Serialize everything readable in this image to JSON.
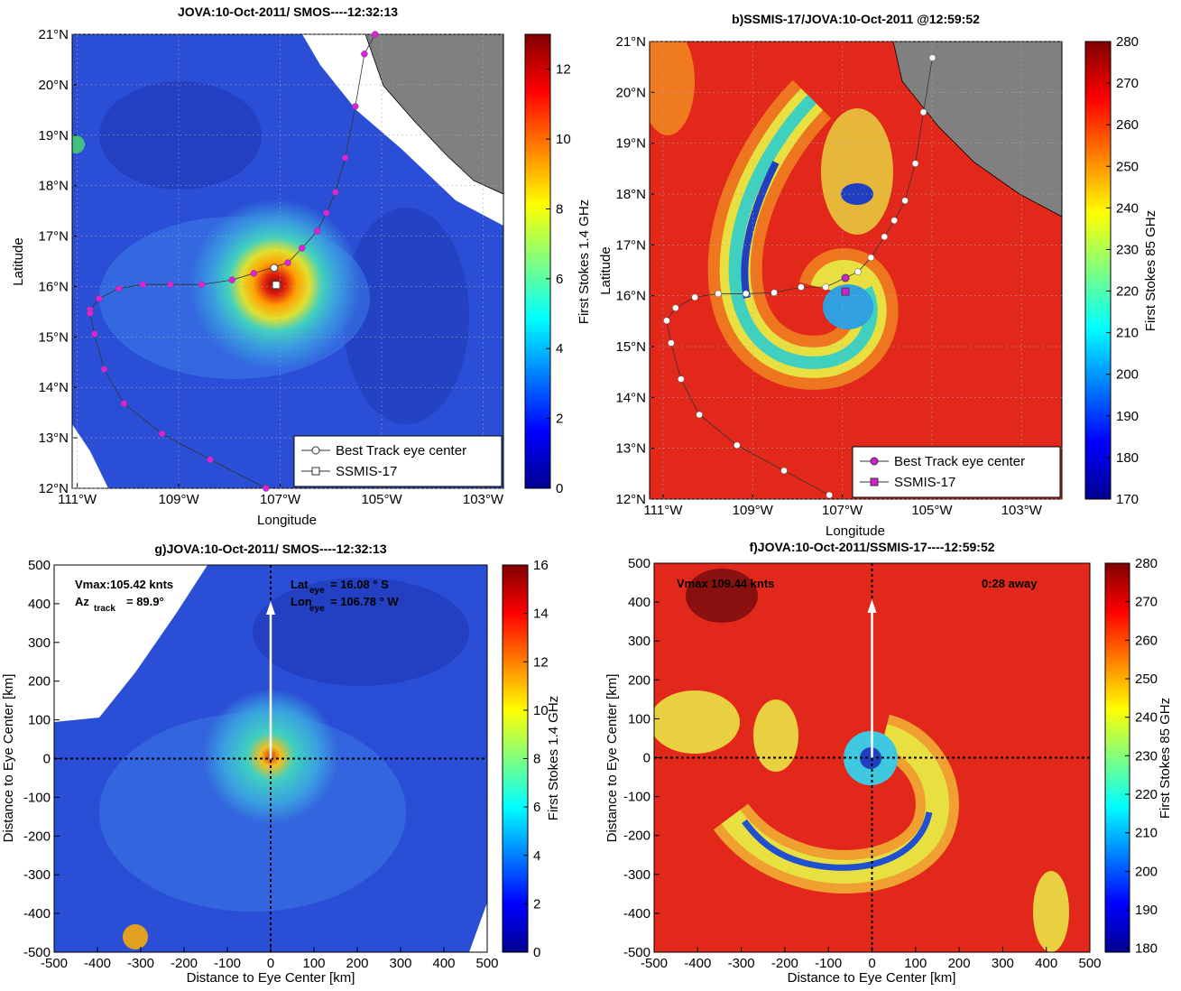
{
  "chart_data": [
    {
      "type": "contour-map",
      "title": "JOVA:10-Oct-2011/ SMOS----12:32:13",
      "xlabel": "Longitude",
      "ylabel": "Latitude",
      "colorbar_label": "First Stokes 1.4 GHz",
      "xlim": [
        -111.1,
        -102.6
      ],
      "ylim": [
        12,
        21
      ],
      "xticks": [
        {
          "value": -111,
          "label": "111°W"
        },
        {
          "value": -109,
          "label": "109°W"
        },
        {
          "value": -107,
          "label": "107°W"
        },
        {
          "value": -105,
          "label": "105°W"
        },
        {
          "value": -103,
          "label": "103°W"
        }
      ],
      "yticks": [
        {
          "value": 12,
          "label": "12°N"
        },
        {
          "value": 13,
          "label": "13°N"
        },
        {
          "value": 14,
          "label": "14°N"
        },
        {
          "value": 15,
          "label": "15°N"
        },
        {
          "value": 16,
          "label": "16°N"
        },
        {
          "value": 17,
          "label": "17°N"
        },
        {
          "value": 18,
          "label": "18°N"
        },
        {
          "value": 19,
          "label": "19°N"
        },
        {
          "value": 20,
          "label": "20°N"
        },
        {
          "value": 21,
          "label": "21°N"
        }
      ],
      "clim": [
        0,
        13
      ],
      "cticks": [
        0,
        2,
        4,
        6,
        8,
        10,
        12
      ],
      "grid": true,
      "legend": [
        "Best Track eye center",
        "SSMIS-17"
      ],
      "track": {
        "color": "#e020e0",
        "lon": [
          -105.13,
          -105.34,
          -105.52,
          -105.72,
          -105.91,
          -106.09,
          -106.27,
          -106.57,
          -106.85,
          -107.52,
          -107.95,
          -108.55,
          -109.16,
          -109.71,
          -110.18,
          -110.57,
          -110.75,
          -110.75,
          -110.66,
          -110.47,
          -110.08,
          -109.33,
          -108.38,
          -107.28
        ],
        "lat": [
          21.0,
          20.61,
          19.57,
          18.55,
          17.87,
          17.46,
          17.1,
          16.76,
          16.47,
          16.26,
          16.13,
          16.04,
          16.04,
          16.04,
          15.96,
          15.76,
          15.54,
          15.47,
          15.06,
          14.36,
          13.68,
          13.08,
          12.57,
          12.0
        ]
      },
      "eye_best": {
        "color": "#ffffff",
        "lon": -107.12,
        "lat": 16.37
      },
      "eye_ssmis": {
        "color": "#ffffff",
        "lon": -107.08,
        "lat": 16.03
      }
    },
    {
      "type": "contour-map",
      "title": "b)SSMIS-17/JOVA:10-Oct-2011 @12:59:52",
      "xlabel": "Longitude",
      "ylabel": "Latitude",
      "colorbar_label": "First Stokes 85 GHz",
      "xlim": [
        -111.3,
        -102.1
      ],
      "ylim": [
        12,
        21
      ],
      "xticks": [
        {
          "value": -111,
          "label": "111°W"
        },
        {
          "value": -109,
          "label": "109°W"
        },
        {
          "value": -107,
          "label": "107°W"
        },
        {
          "value": -105,
          "label": "105°W"
        },
        {
          "value": -103,
          "label": "103°W"
        }
      ],
      "yticks": [
        {
          "value": 12,
          "label": "12°N"
        },
        {
          "value": 13,
          "label": "13°N"
        },
        {
          "value": 14,
          "label": "14°N"
        },
        {
          "value": 15,
          "label": "15°N"
        },
        {
          "value": 16,
          "label": "16°N"
        },
        {
          "value": 17,
          "label": "17°N"
        },
        {
          "value": 18,
          "label": "18°N"
        },
        {
          "value": 19,
          "label": "19°N"
        },
        {
          "value": 20,
          "label": "20°N"
        },
        {
          "value": 21,
          "label": "21°N"
        }
      ],
      "clim": [
        170,
        280
      ],
      "cticks": [
        170,
        180,
        190,
        200,
        210,
        220,
        230,
        240,
        250,
        260,
        270,
        280
      ],
      "grid": true,
      "legend": [
        "Best Track eye center",
        "SSMIS-17"
      ],
      "track": {
        "color": "#ffffff",
        "lon": [
          -104.99,
          -105.19,
          -105.37,
          -105.6,
          -105.84,
          -106.06,
          -106.36,
          -106.65,
          -107.37,
          -107.92,
          -108.52,
          -109.15,
          -109.77,
          -110.29,
          -110.72,
          -110.92,
          -110.82,
          -110.6,
          -110.19,
          -109.35,
          -108.3,
          -107.29
        ],
        "lat": [
          20.68,
          19.61,
          18.6,
          17.87,
          17.48,
          17.16,
          16.75,
          16.47,
          16.17,
          16.17,
          16.06,
          16.04,
          16.04,
          15.97,
          15.76,
          15.51,
          15.07,
          14.36,
          13.66,
          13.06,
          12.56,
          12.08
        ]
      },
      "eye_best": {
        "color": "#d020d0",
        "lon": -106.93,
        "lat": 16.35
      },
      "eye_ssmis": {
        "color": "#d020d0",
        "lon": -106.93,
        "lat": 16.08
      }
    },
    {
      "type": "contour-polar",
      "title": "g)JOVA:10-Oct-2011/ SMOS----12:32:13",
      "xlabel": "Distance to Eye Center [km]",
      "ylabel": "Distance to Eye Center [km]",
      "colorbar_label": "First Stokes 1.4 GHz",
      "xlim": [
        -500,
        500
      ],
      "ylim": [
        -500,
        500
      ],
      "xticks": [
        -500,
        -400,
        -300,
        -200,
        -100,
        0,
        100,
        200,
        300,
        400,
        500
      ],
      "yticks": [
        -500,
        -400,
        -300,
        -200,
        -100,
        0,
        100,
        200,
        300,
        400,
        500
      ],
      "clim": [
        0,
        16
      ],
      "cticks": [
        0,
        2,
        4,
        6,
        8,
        10,
        12,
        14,
        16
      ],
      "annotations": [
        "Vmax:105.42 knts",
        "Az",
        "track",
        "= 89.9°",
        "Lat",
        "eye",
        "= 16.08 ° S",
        "Lon",
        "eye",
        "= 106.78 ° W"
      ]
    },
    {
      "type": "contour-polar",
      "title": "f)JOVA:10-Oct-2011/SSMIS-17----12:59:52",
      "xlabel": "Distance to Eye Center [km]",
      "ylabel": "Distance to Eye Center [km]",
      "colorbar_label": "First Stokes 85 GHz",
      "xlim": [
        -500,
        500
      ],
      "ylim": [
        -500,
        500
      ],
      "xticks": [
        -500,
        -400,
        -300,
        -200,
        -100,
        0,
        100,
        200,
        300,
        400,
        500
      ],
      "yticks": [
        -500,
        -400,
        -300,
        -200,
        -100,
        0,
        100,
        200,
        300,
        400,
        500
      ],
      "clim": [
        179,
        280
      ],
      "cticks": [
        180,
        190,
        200,
        210,
        220,
        230,
        240,
        250,
        260,
        270,
        280
      ],
      "annotations": [
        "Vmax 109.44 knts",
        "0:28 away"
      ]
    }
  ]
}
